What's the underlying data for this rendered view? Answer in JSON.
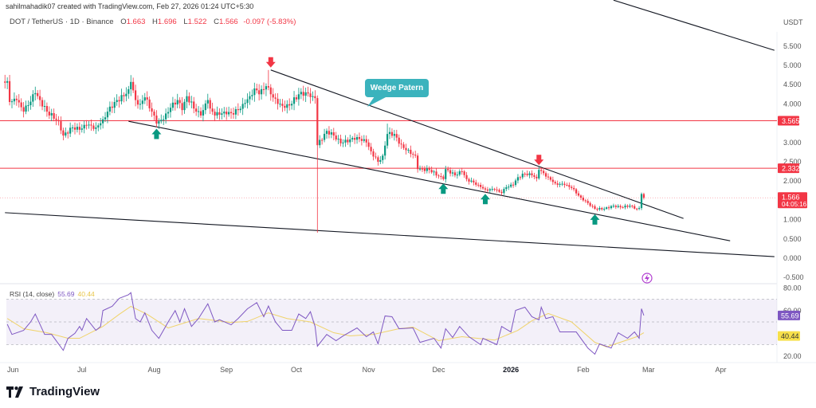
{
  "header": {
    "credit": "sahilmahadik07 created with TradingView.com, Feb 27, 2026 01:24 UTC+5:30",
    "symbol": "DOT / TetherUS · 1D · Binance",
    "ohlc": {
      "o_label": "O",
      "o": "1.663",
      "h_label": "H",
      "h": "1.696",
      "l_label": "L",
      "l": "1.522",
      "c_label": "C",
      "c": "1.566",
      "change": "-0.097 (-5.83%)"
    },
    "currency": "USDT"
  },
  "annotation": {
    "label": "Wedge Patern"
  },
  "rsi_legend": {
    "name": "RSI (14, close)",
    "rsi": "55.69",
    "ma": "40.44"
  },
  "brand": {
    "name": "TradingView"
  },
  "colors": {
    "up": "#089981",
    "down": "#f23645",
    "level": "#f23645",
    "rsi": "#7e57c2",
    "rsi_ma": "#f0d36a",
    "callout": "#3bb3bd",
    "trendline": "#131722"
  },
  "icons": {
    "flash": "flash-icon",
    "arrow_down": "arrow-down-icon",
    "arrow_up": "arrow-up-icon"
  },
  "chart_data": [
    {
      "type": "candlestick",
      "title": "DOT / TetherUS · 1D · Binance",
      "ylabel": "USDT",
      "ylim": [
        -0.6,
        6.2
      ],
      "xlim": [
        "2025-05-29",
        "2026-04-25"
      ],
      "x_ticks": [
        "Jun",
        "Jul",
        "Aug",
        "Sep",
        "Oct",
        "Nov",
        "Dec",
        "2026",
        "Feb",
        "Mar",
        "Apr"
      ],
      "x_tick_dates": [
        "2025-06-01",
        "2025-07-01",
        "2025-08-01",
        "2025-09-01",
        "2025-10-01",
        "2025-11-01",
        "2025-12-01",
        "2026-01-01",
        "2026-02-01",
        "2026-03-01",
        "2026-04-01"
      ],
      "y_ticks": [
        "5.500",
        "5.000",
        "4.500",
        "4.000",
        "3.000",
        "2.500",
        "2.000",
        "1.000",
        "0.500",
        "0.000",
        "-0.500"
      ],
      "y_tick_values": [
        5.5,
        5.0,
        4.5,
        4.0,
        3.0,
        2.5,
        2.0,
        1.0,
        0.5,
        0.0,
        -0.5
      ],
      "close_keypoints": [
        [
          "2025-05-29",
          4.55
        ],
        [
          "2025-05-30",
          4.59
        ],
        [
          "2025-05-31",
          4.05
        ],
        [
          "2025-06-03",
          4.1
        ],
        [
          "2025-06-06",
          3.8
        ],
        [
          "2025-06-11",
          4.28
        ],
        [
          "2025-06-13",
          4.1
        ],
        [
          "2025-06-16",
          3.8
        ],
        [
          "2025-06-21",
          3.55
        ],
        [
          "2025-06-23",
          3.18
        ],
        [
          "2025-06-27",
          3.39
        ],
        [
          "2025-06-30",
          3.33
        ],
        [
          "2025-07-03",
          3.45
        ],
        [
          "2025-07-07",
          3.39
        ],
        [
          "2025-07-10",
          3.6
        ],
        [
          "2025-07-12",
          3.8
        ],
        [
          "2025-07-15",
          4.05
        ],
        [
          "2025-07-19",
          4.2
        ],
        [
          "2025-07-21",
          4.38
        ],
        [
          "2025-07-22",
          4.57
        ],
        [
          "2025-07-24",
          4.1
        ],
        [
          "2025-07-26",
          4.0
        ],
        [
          "2025-07-28",
          4.17
        ],
        [
          "2025-07-31",
          3.8
        ],
        [
          "2025-08-02",
          3.49
        ],
        [
          "2025-08-05",
          3.6
        ],
        [
          "2025-08-08",
          3.9
        ],
        [
          "2025-08-11",
          4.1
        ],
        [
          "2025-08-13",
          3.84
        ],
        [
          "2025-08-15",
          4.2
        ],
        [
          "2025-08-19",
          3.8
        ],
        [
          "2025-08-21",
          3.7
        ],
        [
          "2025-08-24",
          4.1
        ],
        [
          "2025-08-25",
          3.88
        ],
        [
          "2025-08-27",
          3.7
        ],
        [
          "2025-08-31",
          3.8
        ],
        [
          "2025-09-03",
          3.76
        ],
        [
          "2025-09-06",
          3.84
        ],
        [
          "2025-09-08",
          4.0
        ],
        [
          "2025-09-11",
          4.2
        ],
        [
          "2025-09-13",
          4.4
        ],
        [
          "2025-09-15",
          4.25
        ],
        [
          "2025-09-18",
          4.46
        ],
        [
          "2025-09-20",
          4.25
        ],
        [
          "2025-09-23",
          4.0
        ],
        [
          "2025-09-26",
          3.9
        ],
        [
          "2025-09-28",
          3.96
        ],
        [
          "2025-10-02",
          4.25
        ],
        [
          "2025-10-05",
          4.3
        ],
        [
          "2025-10-08",
          4.2
        ],
        [
          "2025-10-09",
          4.15
        ],
        [
          "2025-10-10",
          2.93
        ],
        [
          "2025-10-14",
          3.3
        ],
        [
          "2025-10-17",
          3.18
        ],
        [
          "2025-10-20",
          2.98
        ],
        [
          "2025-10-24",
          3.08
        ],
        [
          "2025-10-27",
          3.14
        ],
        [
          "2025-10-31",
          3.0
        ],
        [
          "2025-11-02",
          2.77
        ],
        [
          "2025-11-05",
          2.5
        ],
        [
          "2025-11-07",
          2.66
        ],
        [
          "2025-11-09",
          3.22
        ],
        [
          "2025-11-12",
          3.22
        ],
        [
          "2025-11-14",
          2.97
        ],
        [
          "2025-11-17",
          2.8
        ],
        [
          "2025-11-21",
          2.66
        ],
        [
          "2025-11-22",
          2.31
        ],
        [
          "2025-11-27",
          2.29
        ],
        [
          "2025-12-03",
          2.05
        ],
        [
          "2025-12-04",
          2.31
        ],
        [
          "2025-12-08",
          2.15
        ],
        [
          "2025-12-11",
          2.25
        ],
        [
          "2025-12-13",
          2.05
        ],
        [
          "2025-12-18",
          1.9
        ],
        [
          "2025-12-21",
          1.78
        ],
        [
          "2025-12-25",
          1.78
        ],
        [
          "2025-12-28",
          1.69
        ],
        [
          "2025-12-30",
          1.84
        ],
        [
          "2026-01-02",
          1.9
        ],
        [
          "2026-01-04",
          2.1
        ],
        [
          "2026-01-07",
          2.19
        ],
        [
          "2026-01-10",
          2.15
        ],
        [
          "2026-01-12",
          2.07
        ],
        [
          "2026-01-13",
          2.29
        ],
        [
          "2026-01-17",
          2.1
        ],
        [
          "2026-01-20",
          1.94
        ],
        [
          "2026-01-24",
          1.9
        ],
        [
          "2026-01-27",
          1.82
        ],
        [
          "2026-01-31",
          1.57
        ],
        [
          "2026-02-03",
          1.43
        ],
        [
          "2026-02-06",
          1.28
        ],
        [
          "2026-02-10",
          1.28
        ],
        [
          "2026-02-14",
          1.36
        ],
        [
          "2026-02-17",
          1.32
        ],
        [
          "2026-02-21",
          1.36
        ],
        [
          "2026-02-24",
          1.28
        ],
        [
          "2026-02-25",
          1.3
        ],
        [
          "2026-02-26",
          1.663
        ],
        [
          "2026-02-27",
          1.566
        ]
      ],
      "notable_wicks": [
        {
          "date": "2025-09-19",
          "high": 4.88
        },
        {
          "date": "2025-10-10",
          "low": 0.66
        },
        {
          "date": "2025-11-09",
          "high": 3.49
        },
        {
          "date": "2026-02-27",
          "high": 1.696,
          "low": 1.522
        }
      ],
      "last_price": {
        "value": 1.566,
        "label": "1.566",
        "countdown": "04:05:16"
      },
      "horizontal_levels": [
        {
          "value": 3.565,
          "label": "3.565"
        },
        {
          "value": 2.332,
          "label": "2.332"
        }
      ],
      "trendlines": [
        {
          "from": [
            "2025-09-20",
            4.88
          ],
          "to": [
            "2026-03-16",
            1.03
          ]
        },
        {
          "from": [
            "2025-07-21",
            3.55
          ],
          "to": [
            "2026-04-05",
            0.45
          ]
        },
        {
          "from": [
            "2025-05-29",
            1.18
          ],
          "to": [
            "2026-04-24",
            0.04
          ]
        },
        {
          "from": [
            "2026-02-14",
            6.69
          ],
          "to": [
            "2026-04-24",
            5.39
          ]
        }
      ],
      "markers": [
        {
          "type": "down",
          "date": "2025-09-20",
          "price": 4.88
        },
        {
          "type": "down",
          "date": "2026-01-13",
          "price": 2.35
        },
        {
          "type": "up",
          "date": "2025-08-02",
          "price": 3.42
        },
        {
          "type": "up",
          "date": "2025-12-03",
          "price": 2.0
        },
        {
          "type": "up",
          "date": "2025-12-21",
          "price": 1.73
        },
        {
          "type": "up",
          "date": "2026-02-06",
          "price": 1.2
        }
      ]
    },
    {
      "type": "line",
      "title": "RSI (14, close)",
      "ylim": [
        15,
        85
      ],
      "y_ticks": [
        "80.00",
        "60.00",
        "20.00"
      ],
      "y_tick_values": [
        80,
        60,
        20
      ],
      "bands": [
        30,
        50,
        70
      ],
      "series": [
        {
          "name": "RSI",
          "last": "55.69",
          "points": [
            [
              "2025-05-30",
              48
            ],
            [
              "2025-06-01",
              39
            ],
            [
              "2025-06-06",
              42.6
            ],
            [
              "2025-06-09",
              50
            ],
            [
              "2025-06-11",
              57
            ],
            [
              "2025-06-15",
              39
            ],
            [
              "2025-06-18",
              39
            ],
            [
              "2025-06-23",
              25
            ],
            [
              "2025-06-25",
              35.5
            ],
            [
              "2025-06-28",
              40
            ],
            [
              "2025-06-30",
              46
            ],
            [
              "2025-07-01",
              42.6
            ],
            [
              "2025-07-03",
              53
            ],
            [
              "2025-07-07",
              42.6
            ],
            [
              "2025-07-09",
              46
            ],
            [
              "2025-07-10",
              60
            ],
            [
              "2025-07-14",
              63.8
            ],
            [
              "2025-07-17",
              70.8
            ],
            [
              "2025-07-21",
              74
            ],
            [
              "2025-07-22",
              75.8
            ],
            [
              "2025-07-24",
              53
            ],
            [
              "2025-07-26",
              50
            ],
            [
              "2025-07-28",
              58
            ],
            [
              "2025-07-31",
              42.6
            ],
            [
              "2025-08-03",
              35.5
            ],
            [
              "2025-08-07",
              50
            ],
            [
              "2025-08-10",
              60
            ],
            [
              "2025-08-12",
              50
            ],
            [
              "2025-08-14",
              61.6
            ],
            [
              "2025-08-17",
              46
            ],
            [
              "2025-08-20",
              53
            ],
            [
              "2025-08-24",
              66
            ],
            [
              "2025-08-27",
              50
            ],
            [
              "2025-08-29",
              52
            ],
            [
              "2025-09-03",
              47.5
            ],
            [
              "2025-09-06",
              53
            ],
            [
              "2025-09-10",
              61.6
            ],
            [
              "2025-09-14",
              67
            ],
            [
              "2025-09-17",
              54.6
            ],
            [
              "2025-09-19",
              64
            ],
            [
              "2025-09-22",
              50
            ],
            [
              "2025-09-25",
              42.6
            ],
            [
              "2025-09-29",
              42.6
            ],
            [
              "2025-10-02",
              57
            ],
            [
              "2025-10-05",
              53
            ],
            [
              "2025-10-07",
              59
            ],
            [
              "2025-10-09",
              46
            ],
            [
              "2025-10-10",
              28.6
            ],
            [
              "2025-10-14",
              39
            ],
            [
              "2025-10-18",
              33.5
            ],
            [
              "2025-10-21",
              37.7
            ],
            [
              "2025-10-27",
              44.7
            ],
            [
              "2025-10-31",
              37
            ],
            [
              "2025-11-03",
              41.2
            ],
            [
              "2025-11-05",
              30.7
            ],
            [
              "2025-11-08",
              55.3
            ],
            [
              "2025-11-11",
              54.6
            ],
            [
              "2025-11-14",
              44
            ],
            [
              "2025-11-20",
              44.7
            ],
            [
              "2025-11-23",
              32
            ],
            [
              "2025-11-29",
              35.6
            ],
            [
              "2025-12-02",
              27
            ],
            [
              "2025-12-04",
              44
            ],
            [
              "2025-12-07",
              36.3
            ],
            [
              "2025-12-10",
              46
            ],
            [
              "2025-12-14",
              37
            ],
            [
              "2025-12-19",
              30
            ],
            [
              "2025-12-20",
              35.6
            ],
            [
              "2025-12-26",
              30
            ],
            [
              "2025-12-28",
              46
            ],
            [
              "2026-01-01",
              41.2
            ],
            [
              "2026-01-03",
              60.2
            ],
            [
              "2026-01-07",
              63
            ],
            [
              "2026-01-10",
              54.6
            ],
            [
              "2026-01-13",
              51.8
            ],
            [
              "2026-01-14",
              63
            ],
            [
              "2026-01-16",
              53
            ],
            [
              "2026-01-19",
              54.6
            ],
            [
              "2026-01-22",
              41.2
            ],
            [
              "2026-01-29",
              41.2
            ],
            [
              "2026-02-03",
              27
            ],
            [
              "2026-02-06",
              21.6
            ],
            [
              "2026-02-08",
              30.7
            ],
            [
              "2026-02-13",
              27
            ],
            [
              "2026-02-16",
              40.5
            ],
            [
              "2026-02-20",
              35.6
            ],
            [
              "2026-02-23",
              41.2
            ],
            [
              "2026-02-25",
              35.6
            ],
            [
              "2026-02-26",
              61.6
            ],
            [
              "2026-02-27",
              55.69
            ]
          ]
        },
        {
          "name": "RSI-based MA",
          "last": "40.44",
          "points": [
            [
              "2025-05-30",
              53
            ],
            [
              "2025-06-06",
              44
            ],
            [
              "2025-06-16",
              40.5
            ],
            [
              "2025-06-25",
              35.6
            ],
            [
              "2025-06-30",
              35.6
            ],
            [
              "2025-07-10",
              46
            ],
            [
              "2025-07-17",
              56.7
            ],
            [
              "2025-07-22",
              63.7
            ],
            [
              "2025-07-29",
              56.7
            ],
            [
              "2025-08-07",
              44.7
            ],
            [
              "2025-08-20",
              53
            ],
            [
              "2025-09-03",
              49.6
            ],
            [
              "2025-09-10",
              50.4
            ],
            [
              "2025-09-19",
              58
            ],
            [
              "2025-09-27",
              53
            ],
            [
              "2025-10-07",
              50
            ],
            [
              "2025-10-17",
              40.5
            ],
            [
              "2025-10-24",
              37.7
            ],
            [
              "2025-11-03",
              39
            ],
            [
              "2025-11-14",
              44
            ],
            [
              "2025-11-20",
              45.4
            ],
            [
              "2025-12-01",
              33.5
            ],
            [
              "2025-12-11",
              37
            ],
            [
              "2025-12-25",
              34
            ],
            [
              "2026-01-04",
              42.6
            ],
            [
              "2026-01-10",
              51
            ],
            [
              "2026-01-17",
              57.4
            ],
            [
              "2026-01-27",
              50
            ],
            [
              "2026-02-06",
              32
            ],
            [
              "2026-02-11",
              28
            ],
            [
              "2026-02-24",
              37
            ],
            [
              "2026-02-27",
              40.44
            ]
          ]
        }
      ]
    }
  ]
}
